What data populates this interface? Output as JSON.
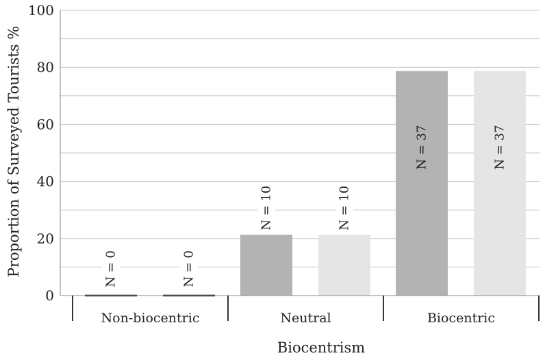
{
  "chart_data": {
    "type": "bar",
    "title": "",
    "xlabel": "Biocentrism",
    "ylabel": "Proportion of Surveyed Tourists %",
    "ylim": [
      0,
      100
    ],
    "yticks": [
      0,
      20,
      40,
      60,
      80,
      100
    ],
    "grid": "horizontal",
    "categories": [
      "Non-biocentric",
      "Neutral",
      "Biocentric"
    ],
    "series": [
      {
        "values": [
          0,
          21.3,
          78.7
        ],
        "labels": [
          "N = 0",
          "N = 10",
          "N = 37"
        ],
        "color": "#b3b3b3"
      },
      {
        "values": [
          0,
          21.3,
          78.7
        ],
        "labels": [
          "N = 0",
          "N = 10",
          "N = 37"
        ],
        "color": "#e5e5e5"
      }
    ]
  }
}
